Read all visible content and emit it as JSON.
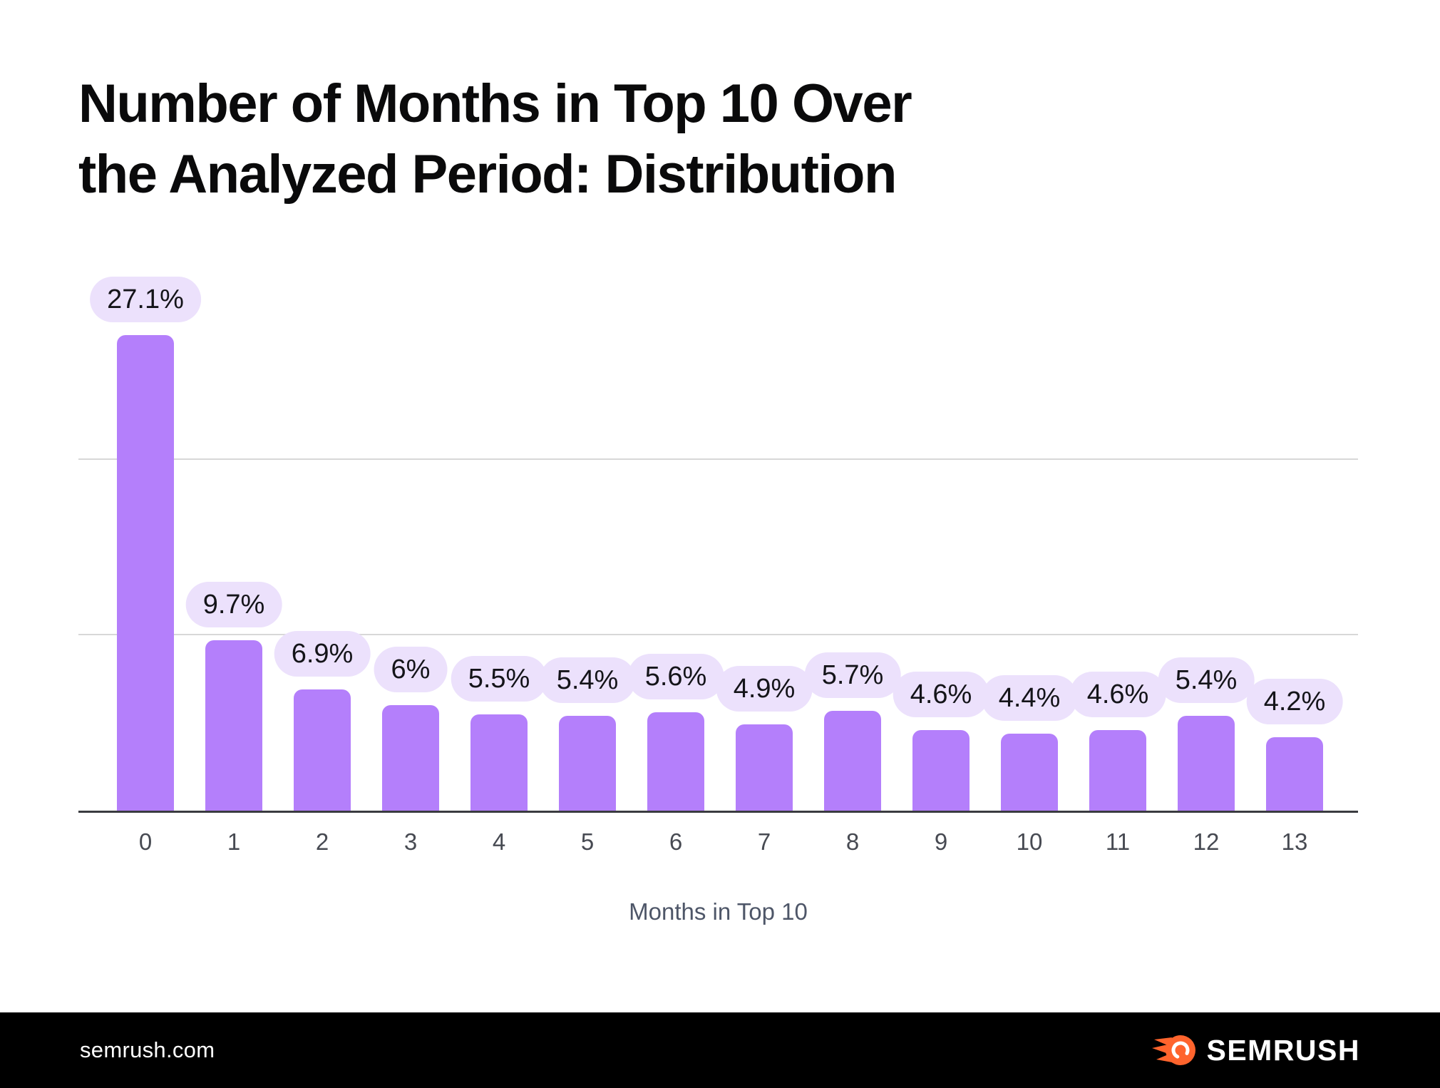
{
  "header": {
    "title_line1": "Number of Months in Top 10 Over",
    "title_line2": "the Analyzed Period: Distribution"
  },
  "chart_data": {
    "type": "bar",
    "categories": [
      "0",
      "1",
      "2",
      "3",
      "4",
      "5",
      "6",
      "7",
      "8",
      "9",
      "10",
      "11",
      "12",
      "13"
    ],
    "values": [
      27.1,
      9.7,
      6.9,
      6,
      5.5,
      5.4,
      5.6,
      4.9,
      5.7,
      4.6,
      4.4,
      4.6,
      5.4,
      4.2
    ],
    "labels": [
      "27.1%",
      "9.7%",
      "6.9%",
      "6%",
      "5.5%",
      "5.4%",
      "5.6%",
      "4.9%",
      "5.7%",
      "4.6%",
      "4.4%",
      "4.6%",
      "5.4%",
      "4.2%"
    ],
    "title": "Number of Months in Top 10 Over the Analyzed Period: Distribution",
    "xlabel": "Months in Top 10",
    "ylabel": "",
    "ylim": [
      0,
      29
    ],
    "gridlines_pct": [
      10,
      20
    ],
    "grid": "horizontal-only",
    "legend": "none",
    "bar_color": "#b47ffb",
    "label_pill_bg": "#ece1fc",
    "gridline_color": "#d8d8d8",
    "axis_line_color": "#3a3b40"
  },
  "footer": {
    "site": "semrush.com",
    "brand": "SEMRUSH",
    "logo_color": "#ff642d",
    "background": "#000000"
  }
}
